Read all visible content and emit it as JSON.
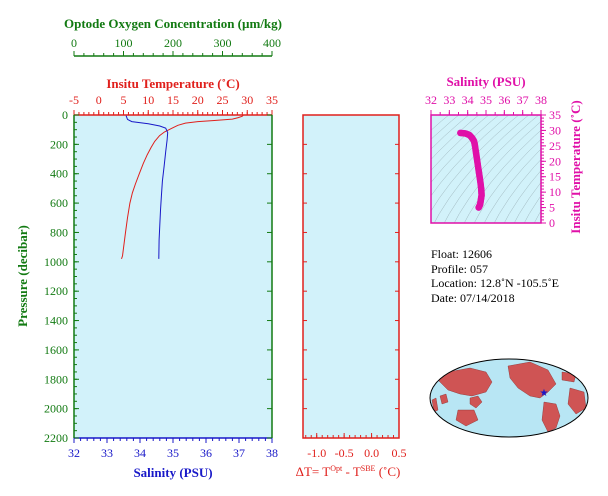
{
  "colors": {
    "oxygen": "#127a12",
    "temperature": "#e0201c",
    "salinity": "#1818c8",
    "pressure": "#127a12",
    "ts_axis": "#e010a8",
    "plot_bg": "#d2f2fa",
    "map_land": "#cf5454",
    "map_ocean": "#b8e6f4"
  },
  "oxygen_axis": {
    "title": "Optode Oxygen Concentration (µm/kg)",
    "ticks": [
      0,
      100,
      200,
      300,
      400
    ]
  },
  "temperature_axis": {
    "title": "Insitu Temperature (˚C)",
    "ticks": [
      -5,
      0,
      5,
      10,
      15,
      20,
      25,
      30,
      35
    ]
  },
  "salinity_axis": {
    "title": "Salinity (PSU)",
    "ticks": [
      32,
      33,
      34,
      35,
      36,
      37,
      38
    ]
  },
  "pressure_axis": {
    "title": "Pressure (decibar)",
    "ticks": [
      0,
      200,
      400,
      600,
      800,
      1000,
      1200,
      1400,
      1600,
      1800,
      2000,
      2200
    ]
  },
  "delta_axis": {
    "label_prefix": "ΔT= T",
    "sup_opt": "Opt",
    "label_minus": " - T",
    "sup_sbe": "SBE",
    "label_unit": " (˚C)",
    "ticks": [
      "-1.0",
      "-0.5",
      "0.0",
      "0.5"
    ]
  },
  "ts_axes": {
    "x_title": "Salinity (PSU)",
    "x_ticks": [
      32,
      33,
      34,
      35,
      36,
      37,
      38
    ],
    "y_title": "Insitu Temperature (˚C)",
    "y_ticks": [
      0,
      5,
      10,
      15,
      20,
      25,
      30,
      35
    ]
  },
  "info": {
    "float": "Float:  12606",
    "profile": "Profile:  057",
    "location": "Location:  12.8˚N  -105.5˚E",
    "date": "Date:  07/14/2018"
  },
  "chart_data": [
    {
      "type": "line",
      "panel": "profile",
      "ylim": [
        2200,
        0
      ],
      "series": [
        {
          "color_key": "temperature",
          "xlim": [
            -5,
            35
          ],
          "points": [
            [
              29.2,
              0
            ],
            [
              29.0,
              8
            ],
            [
              28.2,
              18
            ],
            [
              27,
              28
            ],
            [
              23,
              38
            ],
            [
              20,
              45
            ],
            [
              17.5,
              55
            ],
            [
              16,
              70
            ],
            [
              14.5,
              95
            ],
            [
              13.3,
              115
            ],
            [
              12.3,
              140
            ],
            [
              11.3,
              180
            ],
            [
              10.6,
              220
            ],
            [
              9.8,
              270
            ],
            [
              9,
              330
            ],
            [
              8.2,
              400
            ],
            [
              7.4,
              470
            ],
            [
              6.8,
              530
            ],
            [
              6.3,
              600
            ],
            [
              5.8,
              700
            ],
            [
              5.4,
              800
            ],
            [
              5.1,
              880
            ],
            [
              4.8,
              960
            ],
            [
              4.6,
              980
            ]
          ]
        },
        {
          "color_key": "salinity",
          "xlim": [
            32,
            38
          ],
          "points": [
            [
              33.58,
              5
            ],
            [
              33.62,
              30
            ],
            [
              33.75,
              45
            ],
            [
              34.25,
              60
            ],
            [
              34.6,
              75
            ],
            [
              34.78,
              90
            ],
            [
              34.84,
              120
            ],
            [
              34.82,
              170
            ],
            [
              34.78,
              250
            ],
            [
              34.73,
              350
            ],
            [
              34.68,
              450
            ],
            [
              34.65,
              550
            ],
            [
              34.62,
              650
            ],
            [
              34.6,
              750
            ],
            [
              34.58,
              850
            ],
            [
              34.57,
              980
            ]
          ]
        }
      ]
    },
    {
      "type": "scatter",
      "panel": "ts",
      "xlim": [
        32,
        38
      ],
      "ylim": [
        0,
        35
      ],
      "points": [
        [
          33.6,
          29.2
        ],
        [
          33.9,
          29
        ],
        [
          34.1,
          28.5
        ],
        [
          34.25,
          27.5
        ],
        [
          34.35,
          26.5
        ],
        [
          34.4,
          25
        ],
        [
          34.45,
          23
        ],
        [
          34.5,
          21
        ],
        [
          34.55,
          19
        ],
        [
          34.6,
          17
        ],
        [
          34.65,
          15
        ],
        [
          34.7,
          13
        ],
        [
          34.74,
          11
        ],
        [
          34.76,
          9
        ],
        [
          34.72,
          7.5
        ],
        [
          34.68,
          6
        ],
        [
          34.6,
          5
        ]
      ]
    },
    {
      "type": "scatter",
      "panel": "delta",
      "xlim": [
        -1.25,
        0.5
      ],
      "points": []
    }
  ]
}
